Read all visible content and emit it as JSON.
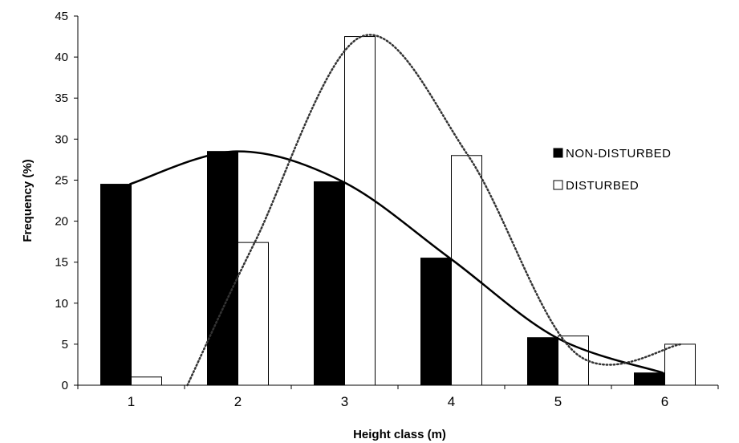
{
  "chart_data": {
    "type": "bar",
    "categories": [
      "1",
      "2",
      "3",
      "4",
      "5",
      "6"
    ],
    "series": [
      {
        "name": "NON-DISTURBED",
        "values": [
          24.5,
          28.5,
          24.8,
          15.5,
          5.8,
          1.5
        ],
        "color": "#000000",
        "trend": "solid"
      },
      {
        "name": "DISTURBED",
        "values": [
          1.0,
          17.4,
          42.5,
          28.0,
          6.0,
          5.0
        ],
        "color": "#ffffff",
        "trend": "dotted"
      }
    ],
    "xlabel": "Height class (m)",
    "ylabel": "Frequency (%)",
    "ylim": [
      0,
      45
    ],
    "yticks": [
      0,
      5,
      10,
      15,
      20,
      25,
      30,
      35,
      40,
      45
    ],
    "grid": false,
    "legend": "right"
  }
}
